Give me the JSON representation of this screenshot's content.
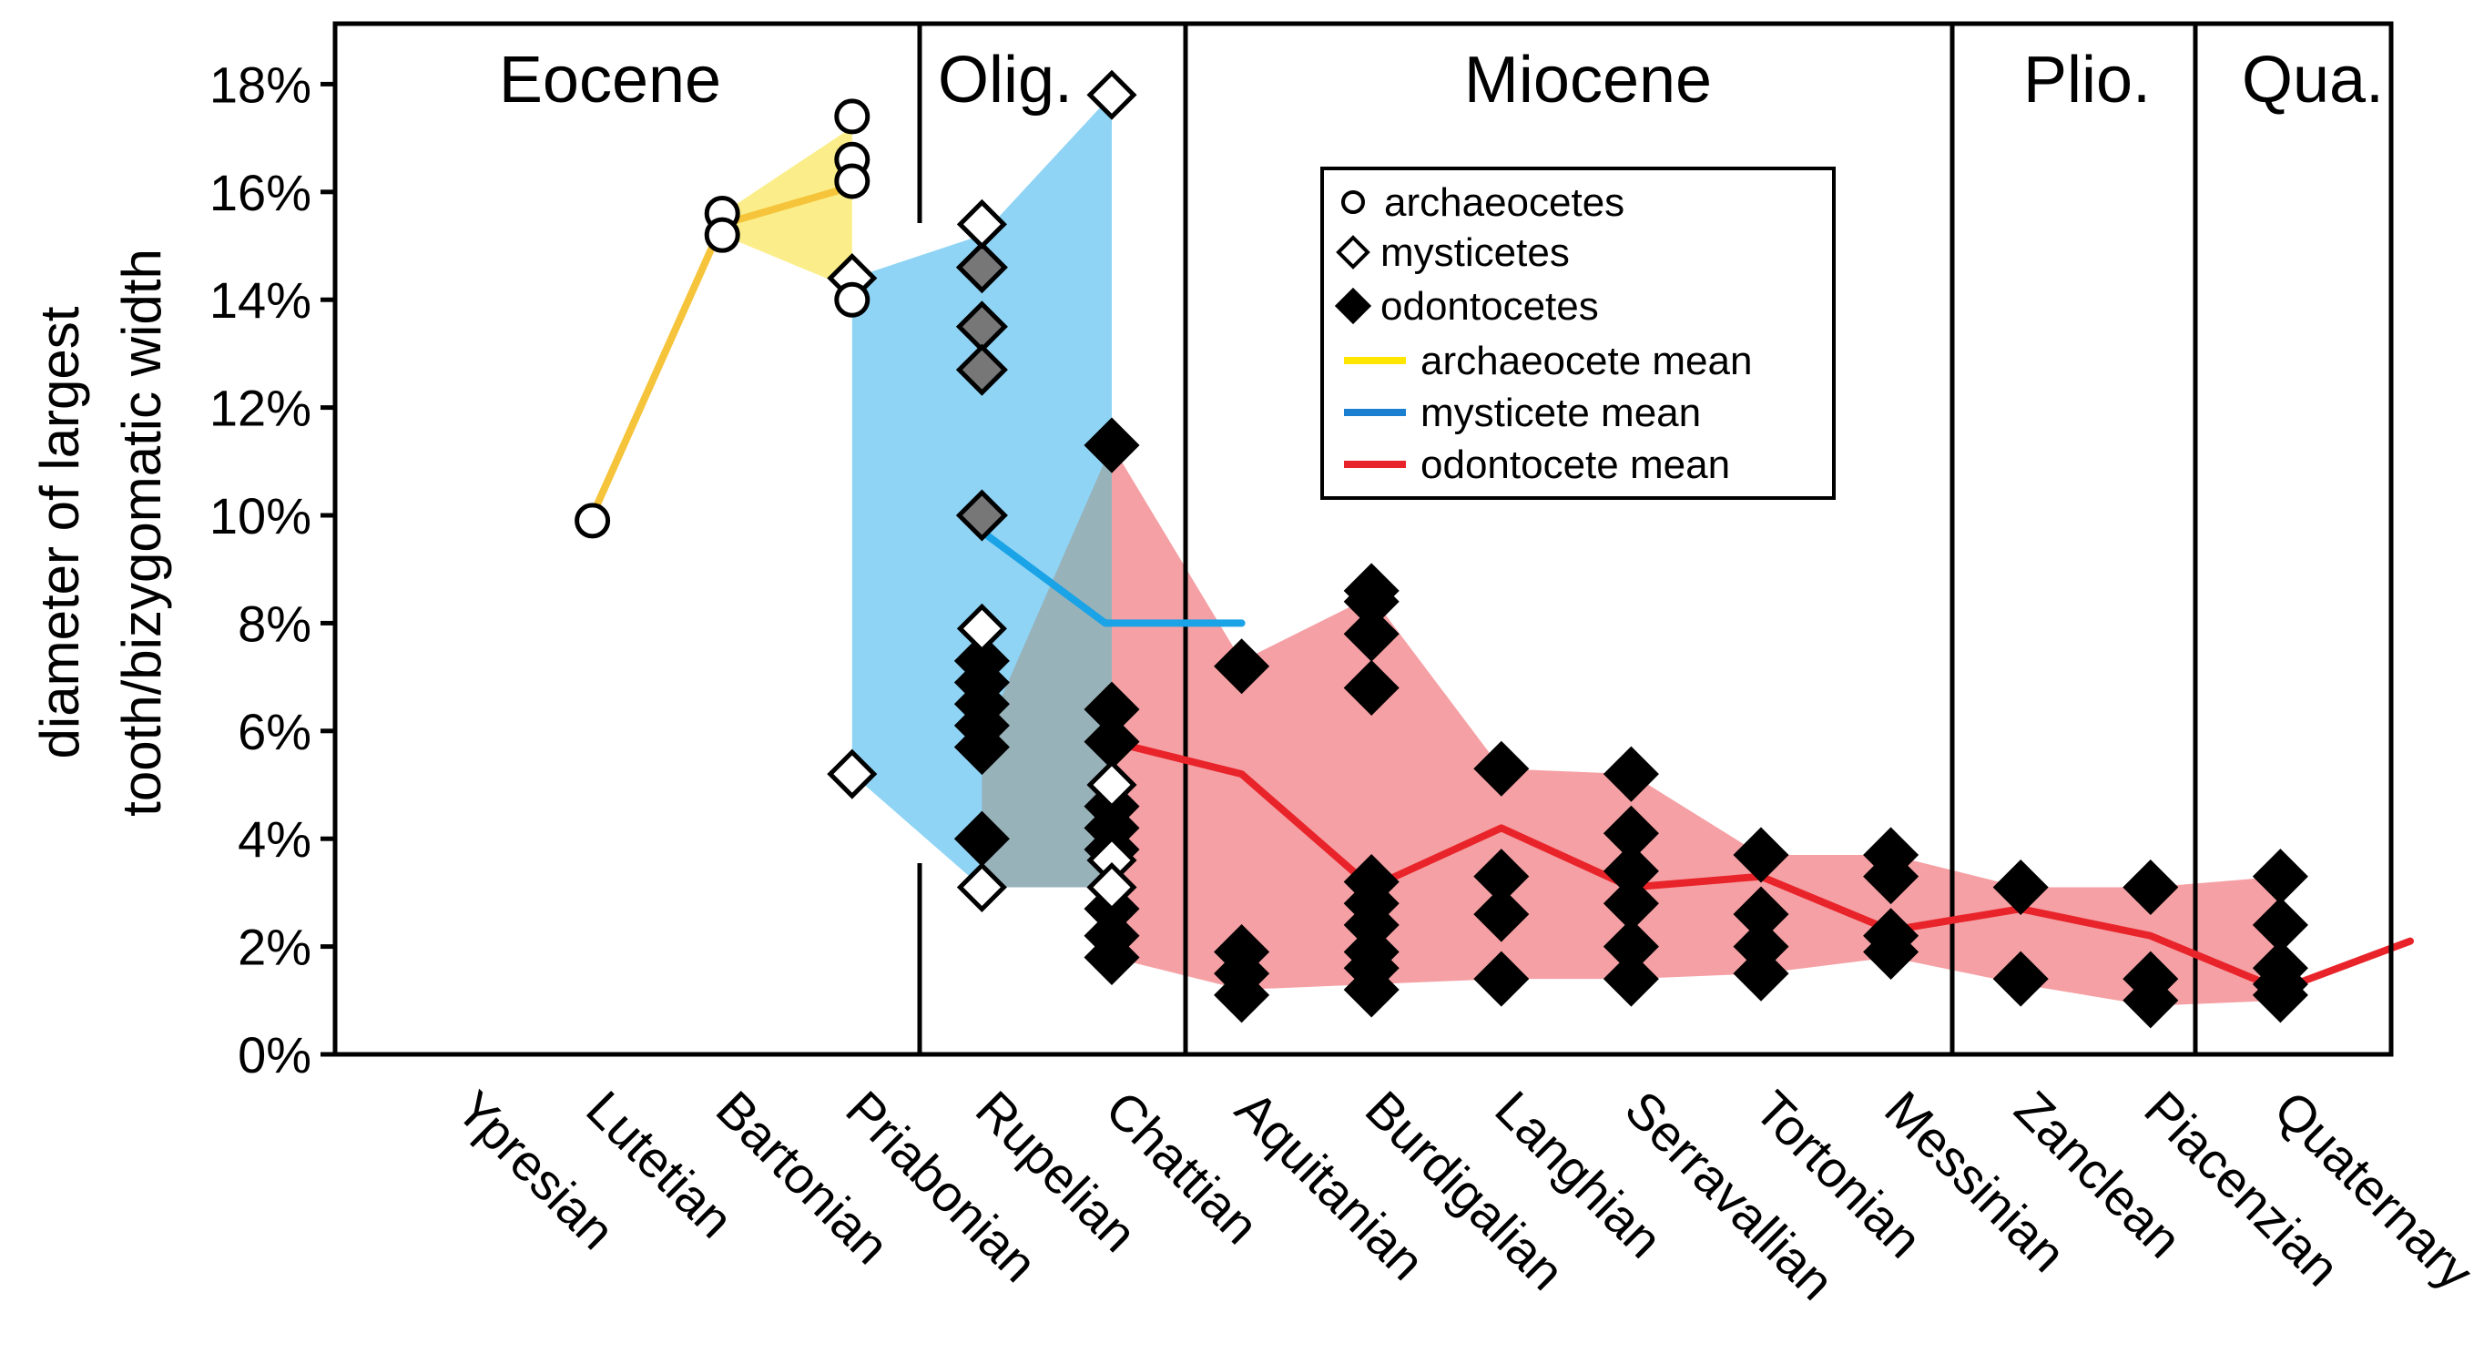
{
  "chart_data": {
    "type": "scatter",
    "ylabel_line1": "diameter of largest",
    "ylabel_line2": "tooth/bizygomatic width",
    "ylim": [
      0,
      19
    ],
    "yticks": [
      0,
      2,
      4,
      6,
      8,
      10,
      12,
      14,
      16,
      18
    ],
    "ytick_labels": [
      "0%",
      "2%",
      "4%",
      "6%",
      "8%",
      "10%",
      "12%",
      "14%",
      "16%",
      "18%"
    ],
    "categories": [
      "Ypresian",
      "Lutetian",
      "Bartonian",
      "Priabonian",
      "Rupelian",
      "Chattian",
      "Aquitanian",
      "Burdigalian",
      "Langhian",
      "Serravallian",
      "Tortonian",
      "Messinian",
      "Zanclean",
      "Piacenzian",
      "Quaternary"
    ],
    "epochs": [
      {
        "name": "Eocene",
        "from": 0,
        "to": 3
      },
      {
        "name": "Olig.",
        "from": 4,
        "to": 5
      },
      {
        "name": "Miocene",
        "from": 6,
        "to": 11
      },
      {
        "name": "Plio.",
        "from": 12,
        "to": 13
      },
      {
        "name": "Qua.",
        "from": 14,
        "to": 14
      }
    ],
    "legend": {
      "position": "top-center",
      "entries": [
        {
          "label": "archaeocetes",
          "kind": "circle"
        },
        {
          "label": "mysticetes",
          "kind": "diamond-open"
        },
        {
          "label": "odontocetes",
          "kind": "diamond-filled"
        },
        {
          "label": "archaeocete mean",
          "kind": "line",
          "color": "#ffe600"
        },
        {
          "label": "mysticete mean",
          "kind": "line",
          "color": "#1a7fd1"
        },
        {
          "label": "odontocete mean",
          "kind": "line",
          "color": "#e8242a"
        }
      ]
    },
    "colors": {
      "archaeocete_band": "#fbee8a",
      "archaeocete_line": "#f5c43a",
      "mysticete_band": "#8fd4f5",
      "mysticete_line": "#1aa3e6",
      "odontocete_band": "#f5a0a4",
      "odontocete_line": "#e8242a",
      "overlap_band": "#98b2ba",
      "grey_diamond": "#777777"
    },
    "bands": {
      "archaeocetes": {
        "x": [
          2,
          3
        ],
        "upper": [
          15.6,
          17.2
        ],
        "lower": [
          15.2,
          14.2
        ]
      },
      "mysticetes": {
        "x": [
          3,
          4,
          5
        ],
        "upper": [
          14.4,
          15.2,
          17.8
        ],
        "lower": [
          5.2,
          3.1,
          3.1
        ]
      },
      "odontocetes": {
        "x": [
          5,
          6,
          7,
          8,
          9,
          10,
          11,
          12,
          13,
          14
        ],
        "upper": [
          11.3,
          7.3,
          8.5,
          5.3,
          5.2,
          3.7,
          3.7,
          3.1,
          3.1,
          3.3
        ],
        "lower": [
          1.8,
          1.2,
          1.3,
          1.4,
          1.4,
          1.5,
          1.8,
          1.3,
          0.9,
          1.0
        ]
      }
    },
    "series": [
      {
        "name": "archaeocete mean",
        "x": [
          1,
          2,
          3
        ],
        "values": [
          10.0,
          15.4,
          16.1
        ]
      },
      {
        "name": "mysticete mean",
        "x": [
          4,
          4.95,
          6
        ],
        "values": [
          9.7,
          8.0,
          8.0
        ]
      },
      {
        "name": "odontocete mean",
        "x": [
          5,
          6,
          7,
          8,
          9,
          10,
          11,
          12,
          13,
          14,
          15
        ],
        "values": [
          5.8,
          5.2,
          3.1,
          4.2,
          3.1,
          3.3,
          2.3,
          2.7,
          2.2,
          1.2,
          2.1
        ]
      }
    ],
    "archaeocetes": [
      {
        "x": 1,
        "y": 9.9
      },
      {
        "x": 2,
        "y": 15.6
      },
      {
        "x": 2,
        "y": 15.2
      },
      {
        "x": 3,
        "y": 17.4
      },
      {
        "x": 3,
        "y": 16.6
      },
      {
        "x": 3,
        "y": 16.2
      },
      {
        "x": 3,
        "y": 14.0
      }
    ],
    "mysticetes": [
      {
        "x": 3,
        "y": 14.4
      },
      {
        "x": 3,
        "y": 5.2
      },
      {
        "x": 4,
        "y": 15.4
      },
      {
        "x": 4,
        "y": 7.9
      },
      {
        "x": 4,
        "y": 3.1
      },
      {
        "x": 5,
        "y": 17.8
      },
      {
        "x": 5,
        "y": 5.0
      },
      {
        "x": 5,
        "y": 3.6
      },
      {
        "x": 5,
        "y": 3.1
      }
    ],
    "mysticetes_grey": [
      {
        "x": 4,
        "y": 14.6
      },
      {
        "x": 4,
        "y": 13.5
      },
      {
        "x": 4,
        "y": 12.7
      },
      {
        "x": 4,
        "y": 10.0
      }
    ],
    "odontocetes": [
      {
        "x": 4,
        "y": 7.3
      },
      {
        "x": 4,
        "y": 6.9
      },
      {
        "x": 4,
        "y": 6.5
      },
      {
        "x": 4,
        "y": 6.1
      },
      {
        "x": 4,
        "y": 5.7
      },
      {
        "x": 4,
        "y": 4.0
      },
      {
        "x": 5,
        "y": 11.3
      },
      {
        "x": 5,
        "y": 6.4
      },
      {
        "x": 5,
        "y": 5.8
      },
      {
        "x": 5,
        "y": 4.6
      },
      {
        "x": 5,
        "y": 4.2
      },
      {
        "x": 5,
        "y": 3.8
      },
      {
        "x": 5,
        "y": 2.7
      },
      {
        "x": 5,
        "y": 2.2
      },
      {
        "x": 5,
        "y": 1.8
      },
      {
        "x": 6,
        "y": 7.2
      },
      {
        "x": 6,
        "y": 1.9
      },
      {
        "x": 6,
        "y": 1.5
      },
      {
        "x": 6,
        "y": 1.1
      },
      {
        "x": 7,
        "y": 8.6
      },
      {
        "x": 7,
        "y": 8.4
      },
      {
        "x": 7,
        "y": 7.8
      },
      {
        "x": 7,
        "y": 6.8
      },
      {
        "x": 7,
        "y": 3.2
      },
      {
        "x": 7,
        "y": 2.8
      },
      {
        "x": 7,
        "y": 2.4
      },
      {
        "x": 7,
        "y": 1.9
      },
      {
        "x": 7,
        "y": 1.6
      },
      {
        "x": 7,
        "y": 1.2
      },
      {
        "x": 8,
        "y": 5.3
      },
      {
        "x": 8,
        "y": 3.3
      },
      {
        "x": 8,
        "y": 2.6
      },
      {
        "x": 8,
        "y": 1.4
      },
      {
        "x": 9,
        "y": 5.2
      },
      {
        "x": 9,
        "y": 4.1
      },
      {
        "x": 9,
        "y": 3.4
      },
      {
        "x": 9,
        "y": 2.8
      },
      {
        "x": 9,
        "y": 2.0
      },
      {
        "x": 9,
        "y": 1.4
      },
      {
        "x": 10,
        "y": 3.7
      },
      {
        "x": 10,
        "y": 2.6
      },
      {
        "x": 10,
        "y": 2.0
      },
      {
        "x": 10,
        "y": 1.5
      },
      {
        "x": 11,
        "y": 3.7
      },
      {
        "x": 11,
        "y": 3.3
      },
      {
        "x": 11,
        "y": 2.2
      },
      {
        "x": 11,
        "y": 1.9
      },
      {
        "x": 12,
        "y": 3.1
      },
      {
        "x": 12,
        "y": 1.4
      },
      {
        "x": 13,
        "y": 3.1
      },
      {
        "x": 13,
        "y": 1.4
      },
      {
        "x": 13,
        "y": 1.0
      },
      {
        "x": 14,
        "y": 3.3
      },
      {
        "x": 14,
        "y": 2.4
      },
      {
        "x": 14,
        "y": 1.6
      },
      {
        "x": 14,
        "y": 1.3
      },
      {
        "x": 14,
        "y": 1.1
      }
    ]
  }
}
